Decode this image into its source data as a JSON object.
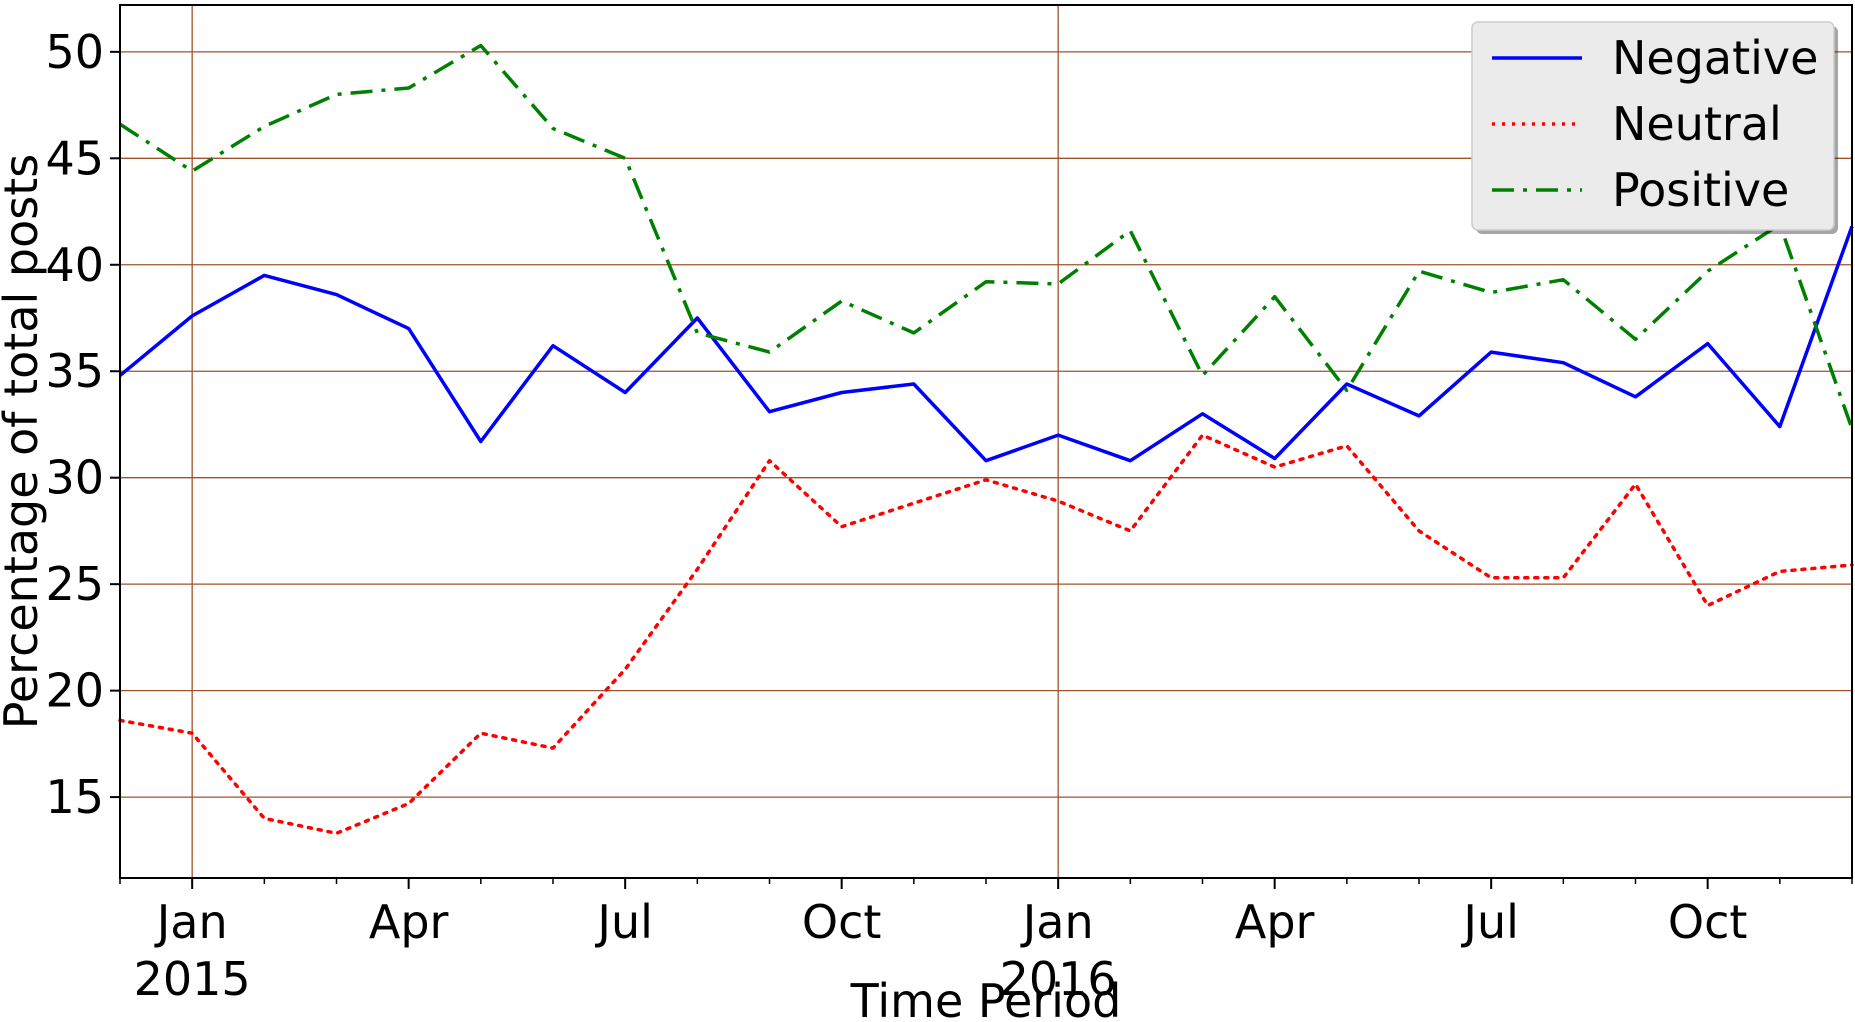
{
  "chart_data": {
    "type": "line",
    "title": "",
    "xlabel": "Time Period",
    "ylabel": "Percentage of total posts",
    "x": [
      "2014-12",
      "2015-01",
      "2015-02",
      "2015-03",
      "2015-04",
      "2015-05",
      "2015-06",
      "2015-07",
      "2015-08",
      "2015-09",
      "2015-10",
      "2015-11",
      "2015-12",
      "2016-01",
      "2016-02",
      "2016-03",
      "2016-04",
      "2016-05",
      "2016-06",
      "2016-07",
      "2016-08",
      "2016-09",
      "2016-10",
      "2016-11",
      "2016-12"
    ],
    "series": [
      {
        "name": "Negative",
        "color": "#0000ff",
        "style": "solid",
        "values": [
          34.8,
          37.6,
          39.5,
          38.6,
          37.0,
          31.7,
          36.2,
          34.0,
          37.5,
          33.1,
          34.0,
          34.4,
          30.8,
          32.0,
          30.8,
          33.0,
          30.9,
          34.4,
          32.9,
          35.9,
          35.4,
          33.8,
          36.3,
          32.4,
          41.8
        ]
      },
      {
        "name": "Neutral",
        "color": "#ff0000",
        "style": "dotted",
        "values": [
          18.6,
          18.0,
          14.0,
          13.3,
          14.7,
          18.0,
          17.3,
          21.0,
          25.7,
          30.8,
          27.7,
          28.8,
          29.9,
          28.9,
          27.5,
          32.0,
          30.5,
          31.5,
          27.5,
          25.3,
          25.3,
          29.7,
          24.0,
          25.6,
          25.9
        ]
      },
      {
        "name": "Positive",
        "color": "#008000",
        "style": "dashdot",
        "values": [
          46.6,
          44.4,
          46.5,
          48.0,
          48.3,
          50.3,
          46.4,
          45.0,
          36.8,
          35.9,
          38.3,
          36.8,
          39.2,
          39.1,
          41.6,
          34.8,
          38.5,
          34.1,
          39.7,
          38.7,
          39.3,
          36.5,
          39.7,
          41.9,
          32.3
        ]
      }
    ],
    "ylim": [
      11.2,
      52.2
    ],
    "yticks": [
      15,
      20,
      25,
      30,
      35,
      40,
      45,
      50
    ],
    "xticks": [
      {
        "at": "2015-01",
        "label": "Jan",
        "sublabel": "2015"
      },
      {
        "at": "2015-04",
        "label": "Apr",
        "sublabel": ""
      },
      {
        "at": "2015-07",
        "label": "Jul",
        "sublabel": ""
      },
      {
        "at": "2015-10",
        "label": "Oct",
        "sublabel": ""
      },
      {
        "at": "2016-01",
        "label": "Jan",
        "sublabel": "2016"
      },
      {
        "at": "2016-04",
        "label": "Apr",
        "sublabel": ""
      },
      {
        "at": "2016-07",
        "label": "Jul",
        "sublabel": ""
      },
      {
        "at": "2016-10",
        "label": "Oct",
        "sublabel": ""
      }
    ],
    "grid": true,
    "grid_color": "#a0522d",
    "legend_position": "upper-right"
  }
}
